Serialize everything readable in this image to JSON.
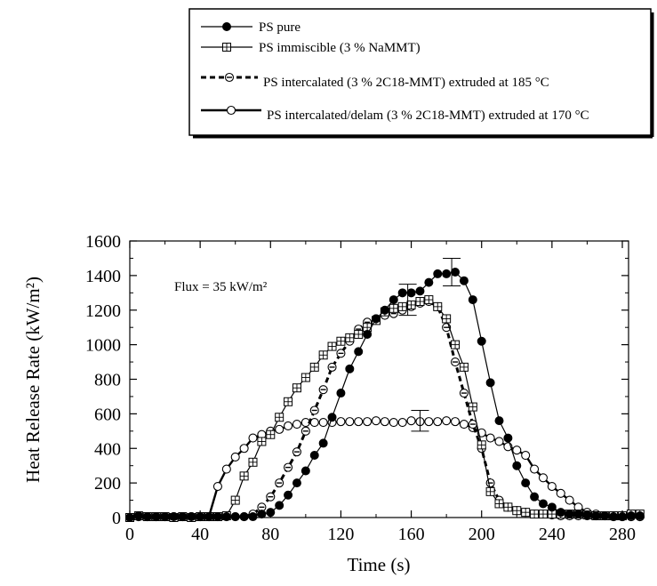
{
  "chart_data": {
    "type": "line",
    "xlabel": "Time (s)",
    "ylabel": "Heat Release Rate (kW/m²)",
    "xlim": [
      0,
      295
    ],
    "ylim": [
      0,
      1600
    ],
    "xticks": [
      0,
      40,
      80,
      120,
      160,
      200,
      240,
      280
    ],
    "yticks": [
      0,
      200,
      400,
      600,
      800,
      1000,
      1200,
      1400,
      1600
    ],
    "grid": false,
    "legend_position": "top, outside plot",
    "annotation": "Flux = 35 kW/m²",
    "series": [
      {
        "name": "PS pure",
        "marker": "filled-circle",
        "line": "solid-thin",
        "points": [
          [
            0,
            0
          ],
          [
            5,
            10
          ],
          [
            10,
            5
          ],
          [
            15,
            5
          ],
          [
            20,
            5
          ],
          [
            25,
            5
          ],
          [
            30,
            5
          ],
          [
            35,
            5
          ],
          [
            40,
            5
          ],
          [
            45,
            5
          ],
          [
            50,
            5
          ],
          [
            55,
            5
          ],
          [
            60,
            5
          ],
          [
            65,
            5
          ],
          [
            70,
            5
          ],
          [
            75,
            20
          ],
          [
            80,
            30
          ],
          [
            85,
            70
          ],
          [
            90,
            130
          ],
          [
            95,
            200
          ],
          [
            100,
            270
          ],
          [
            105,
            360
          ],
          [
            110,
            430
          ],
          [
            115,
            580
          ],
          [
            120,
            720
          ],
          [
            125,
            860
          ],
          [
            130,
            960
          ],
          [
            135,
            1060
          ],
          [
            140,
            1150
          ],
          [
            145,
            1200
          ],
          [
            150,
            1260
          ],
          [
            155,
            1300
          ],
          [
            160,
            1300
          ],
          [
            165,
            1310
          ],
          [
            170,
            1360
          ],
          [
            175,
            1410
          ],
          [
            180,
            1410
          ],
          [
            185,
            1420
          ],
          [
            190,
            1370
          ],
          [
            195,
            1260
          ],
          [
            200,
            1020
          ],
          [
            205,
            780
          ],
          [
            210,
            560
          ],
          [
            215,
            460
          ],
          [
            220,
            300
          ],
          [
            225,
            200
          ],
          [
            230,
            120
          ],
          [
            235,
            80
          ],
          [
            240,
            60
          ],
          [
            245,
            30
          ],
          [
            250,
            20
          ],
          [
            255,
            20
          ],
          [
            260,
            15
          ],
          [
            265,
            10
          ],
          [
            270,
            10
          ],
          [
            275,
            5
          ],
          [
            280,
            5
          ],
          [
            285,
            10
          ],
          [
            290,
            10
          ]
        ],
        "error_bars": [
          {
            "x": 183,
            "y": 1420,
            "low": 1340,
            "high": 1500
          }
        ]
      },
      {
        "name": "PS immiscible (3 % NaMMT)",
        "marker": "square-plus",
        "line": "solid-thin",
        "points": [
          [
            0,
            0
          ],
          [
            5,
            10
          ],
          [
            10,
            5
          ],
          [
            15,
            5
          ],
          [
            20,
            5
          ],
          [
            25,
            0
          ],
          [
            30,
            5
          ],
          [
            35,
            0
          ],
          [
            40,
            5
          ],
          [
            45,
            5
          ],
          [
            50,
            5
          ],
          [
            55,
            10
          ],
          [
            60,
            100
          ],
          [
            65,
            240
          ],
          [
            70,
            320
          ],
          [
            75,
            440
          ],
          [
            80,
            480
          ],
          [
            85,
            580
          ],
          [
            90,
            670
          ],
          [
            95,
            750
          ],
          [
            100,
            810
          ],
          [
            105,
            870
          ],
          [
            110,
            940
          ],
          [
            115,
            990
          ],
          [
            120,
            1020
          ],
          [
            125,
            1040
          ],
          [
            130,
            1060
          ],
          [
            135,
            1100
          ],
          [
            140,
            1140
          ],
          [
            145,
            1190
          ],
          [
            150,
            1210
          ],
          [
            155,
            1220
          ],
          [
            160,
            1230
          ],
          [
            165,
            1250
          ],
          [
            170,
            1260
          ],
          [
            175,
            1220
          ],
          [
            180,
            1150
          ],
          [
            185,
            1000
          ],
          [
            190,
            870
          ],
          [
            195,
            640
          ],
          [
            200,
            420
          ],
          [
            205,
            150
          ],
          [
            210,
            80
          ],
          [
            215,
            60
          ],
          [
            220,
            40
          ],
          [
            225,
            30
          ],
          [
            230,
            20
          ],
          [
            235,
            20
          ],
          [
            240,
            20
          ],
          [
            245,
            20
          ],
          [
            250,
            20
          ],
          [
            255,
            20
          ],
          [
            260,
            15
          ],
          [
            265,
            10
          ],
          [
            270,
            10
          ],
          [
            275,
            10
          ],
          [
            280,
            10
          ],
          [
            285,
            20
          ],
          [
            290,
            20
          ]
        ],
        "error_bars": [
          {
            "x": 158,
            "y": 1260,
            "low": 1170,
            "high": 1350
          }
        ]
      },
      {
        "name": "PS intercalated (3 % 2C18-MMT) extruded at 185 °C",
        "marker": "circle-dot",
        "line": "dashed-thick",
        "points": [
          [
            0,
            0
          ],
          [
            5,
            5
          ],
          [
            10,
            5
          ],
          [
            15,
            5
          ],
          [
            20,
            5
          ],
          [
            25,
            5
          ],
          [
            30,
            5
          ],
          [
            35,
            5
          ],
          [
            40,
            5
          ],
          [
            45,
            5
          ],
          [
            50,
            5
          ],
          [
            55,
            5
          ],
          [
            60,
            5
          ],
          [
            65,
            5
          ],
          [
            70,
            20
          ],
          [
            75,
            60
          ],
          [
            80,
            120
          ],
          [
            85,
            200
          ],
          [
            90,
            290
          ],
          [
            95,
            380
          ],
          [
            100,
            500
          ],
          [
            105,
            620
          ],
          [
            110,
            740
          ],
          [
            115,
            870
          ],
          [
            120,
            950
          ],
          [
            125,
            1020
          ],
          [
            130,
            1090
          ],
          [
            135,
            1130
          ],
          [
            140,
            1150
          ],
          [
            145,
            1170
          ],
          [
            150,
            1180
          ],
          [
            155,
            1200
          ],
          [
            160,
            1220
          ],
          [
            165,
            1240
          ],
          [
            170,
            1250
          ],
          [
            175,
            1220
          ],
          [
            180,
            1100
          ],
          [
            185,
            900
          ],
          [
            190,
            720
          ],
          [
            195,
            540
          ],
          [
            200,
            400
          ],
          [
            205,
            200
          ],
          [
            210,
            100
          ],
          [
            215,
            60
          ],
          [
            220,
            40
          ],
          [
            225,
            30
          ],
          [
            230,
            20
          ],
          [
            235,
            20
          ],
          [
            240,
            15
          ],
          [
            245,
            10
          ],
          [
            250,
            10
          ],
          [
            255,
            10
          ],
          [
            260,
            10
          ],
          [
            265,
            10
          ],
          [
            270,
            10
          ],
          [
            275,
            5
          ],
          [
            280,
            5
          ],
          [
            285,
            5
          ],
          [
            290,
            5
          ]
        ],
        "error_bars": []
      },
      {
        "name": "PS intercalated/delam (3 % 2C18-MMT) extruded at 170 °C",
        "marker": "open-circle",
        "line": "solid-thick",
        "points": [
          [
            0,
            0
          ],
          [
            5,
            5
          ],
          [
            10,
            5
          ],
          [
            15,
            5
          ],
          [
            20,
            5
          ],
          [
            25,
            5
          ],
          [
            30,
            5
          ],
          [
            35,
            5
          ],
          [
            40,
            5
          ],
          [
            45,
            5
          ],
          [
            50,
            180
          ],
          [
            55,
            280
          ],
          [
            60,
            350
          ],
          [
            65,
            400
          ],
          [
            70,
            460
          ],
          [
            75,
            480
          ],
          [
            80,
            500
          ],
          [
            85,
            510
          ],
          [
            90,
            530
          ],
          [
            95,
            540
          ],
          [
            100,
            550
          ],
          [
            105,
            550
          ],
          [
            110,
            550
          ],
          [
            115,
            550
          ],
          [
            120,
            555
          ],
          [
            125,
            555
          ],
          [
            130,
            555
          ],
          [
            135,
            555
          ],
          [
            140,
            560
          ],
          [
            145,
            555
          ],
          [
            150,
            550
          ],
          [
            155,
            550
          ],
          [
            160,
            560
          ],
          [
            165,
            555
          ],
          [
            170,
            555
          ],
          [
            175,
            555
          ],
          [
            180,
            560
          ],
          [
            185,
            555
          ],
          [
            190,
            540
          ],
          [
            195,
            520
          ],
          [
            200,
            490
          ],
          [
            205,
            460
          ],
          [
            210,
            440
          ],
          [
            215,
            410
          ],
          [
            220,
            390
          ],
          [
            225,
            360
          ],
          [
            230,
            280
          ],
          [
            235,
            230
          ],
          [
            240,
            180
          ],
          [
            245,
            140
          ],
          [
            250,
            100
          ],
          [
            255,
            60
          ],
          [
            260,
            30
          ],
          [
            265,
            20
          ],
          [
            270,
            10
          ],
          [
            275,
            10
          ],
          [
            280,
            5
          ],
          [
            285,
            5
          ],
          [
            290,
            5
          ]
        ],
        "error_bars": [
          {
            "x": 165,
            "y": 560,
            "low": 500,
            "high": 620
          }
        ]
      }
    ]
  }
}
